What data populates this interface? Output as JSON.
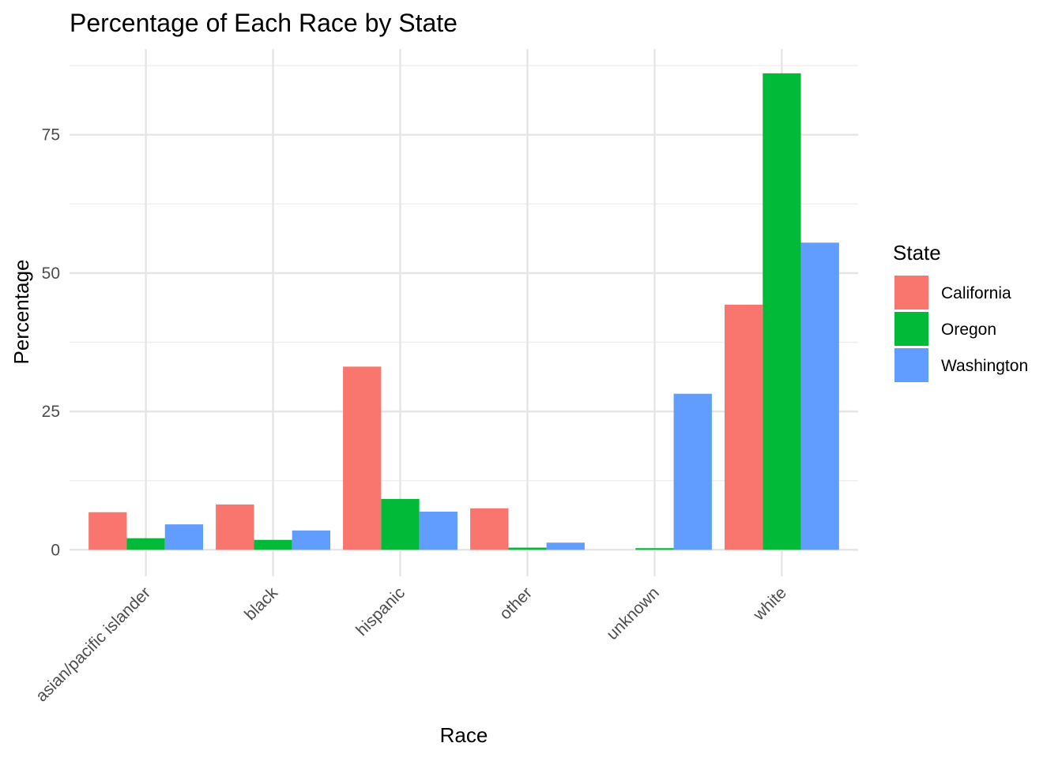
{
  "chart_data": {
    "type": "bar",
    "title": "Percentage of Each Race by State",
    "xlabel": "Race",
    "ylabel": "Percentage",
    "categories": [
      "asian/pacific islander",
      "black",
      "hispanic",
      "other",
      "unknown",
      "white"
    ],
    "series": [
      {
        "name": "California",
        "color": "#F8766D",
        "values": [
          6.8,
          8.2,
          33.1,
          7.5,
          0.0,
          44.3
        ]
      },
      {
        "name": "Oregon",
        "color": "#00BA38",
        "values": [
          2.1,
          1.8,
          9.2,
          0.4,
          0.3,
          86.1
        ]
      },
      {
        "name": "Washington",
        "color": "#619CFF",
        "values": [
          4.6,
          3.5,
          6.9,
          1.3,
          28.2,
          55.5
        ]
      }
    ],
    "ylim": [
      -4.8,
      90.5
    ],
    "yticks": [
      "0",
      "25",
      "50",
      "75"
    ],
    "ytick_values": [
      0,
      25,
      50,
      75
    ],
    "legend": {
      "title": "State",
      "placement": "right"
    },
    "grid": true
  }
}
